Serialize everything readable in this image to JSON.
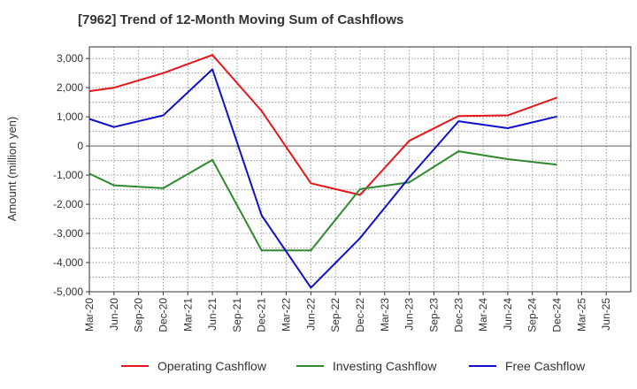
{
  "chart_data": {
    "type": "line",
    "title": "[7962]  Trend of 12-Month Moving Sum of Cashflows",
    "xlabel": "",
    "ylabel": "Amount (million yen)",
    "ylim": [
      -5000,
      3400
    ],
    "yticks": [
      3000,
      2000,
      1000,
      0,
      -1000,
      -2000,
      -3000,
      -4000,
      -5000
    ],
    "ytick_labels": [
      "3,000",
      "2,000",
      "1,000",
      "0",
      "-1,000",
      "-2,000",
      "-3,000",
      "-4,000",
      "-5,000"
    ],
    "categories": [
      "Mar-20",
      "Jun-20",
      "Sep-20",
      "Dec-20",
      "Mar-21",
      "Jun-21",
      "Sep-21",
      "Dec-21",
      "Mar-22",
      "Jun-22",
      "Sep-22",
      "Dec-22",
      "Mar-23",
      "Jun-23",
      "Sep-23",
      "Dec-23",
      "Mar-24",
      "Jun-24",
      "Sep-24",
      "Dec-24",
      "Mar-25",
      "Jun-25"
    ],
    "grid": true,
    "legend_position": "bottom",
    "series": [
      {
        "name": "Operating Cashflow",
        "color": "#e8161b",
        "values": [
          1880,
          2000,
          null,
          2500,
          null,
          3120,
          null,
          1200,
          null,
          -1280,
          null,
          -1680,
          null,
          180,
          null,
          1030,
          null,
          1050,
          null,
          1660,
          null,
          null
        ]
      },
      {
        "name": "Investing Cashflow",
        "color": "#2d8a2d",
        "values": [
          -950,
          -1350,
          null,
          -1450,
          null,
          -480,
          null,
          -3580,
          null,
          -3580,
          null,
          -1480,
          null,
          -1250,
          null,
          -180,
          null,
          -450,
          null,
          -640,
          null,
          null
        ]
      },
      {
        "name": "Free Cashflow",
        "color": "#1010cc",
        "values": [
          930,
          650,
          null,
          1050,
          null,
          2630,
          null,
          -2380,
          null,
          -4860,
          null,
          -3160,
          null,
          -1080,
          null,
          850,
          null,
          610,
          null,
          1010,
          null,
          null
        ]
      }
    ]
  }
}
